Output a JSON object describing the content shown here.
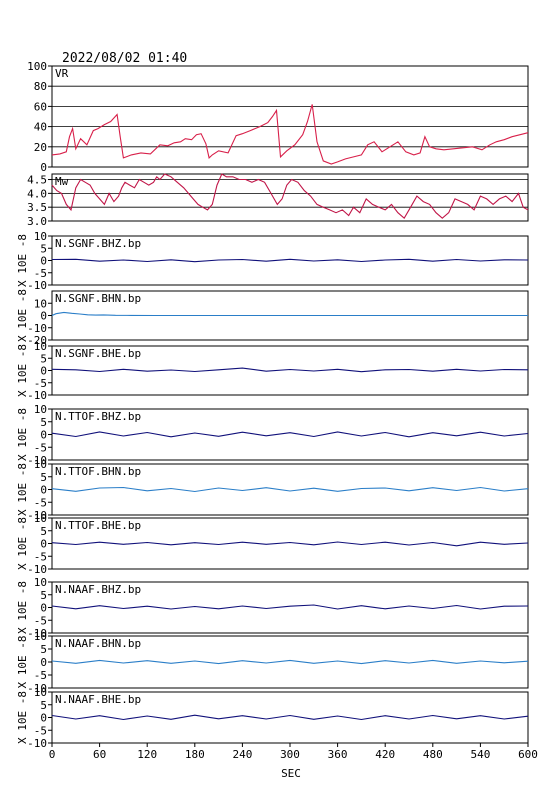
{
  "header": {
    "timestamp": "2022/08/02 01:40"
  },
  "colors": {
    "vr": "#d8204a",
    "mw": "#c01648",
    "dark": "#10107a",
    "light": "#2a7ec8",
    "frame": "#000000",
    "grid": "#000000"
  },
  "chart_data": [
    {
      "type": "line",
      "label": "VR",
      "ylim": [
        0,
        100
      ],
      "yticks": [
        "0",
        "20",
        "40",
        "60",
        "80",
        "100"
      ],
      "ytick_values": [
        0,
        20,
        40,
        60,
        80,
        100
      ],
      "grid": true,
      "series": [
        {
          "x": [
            0,
            10,
            18,
            22,
            26,
            30,
            36,
            44,
            52,
            58,
            66,
            74,
            82,
            86,
            90,
            100,
            112,
            124,
            136,
            146,
            154,
            162,
            168,
            176,
            182,
            188,
            194,
            198,
            202,
            210,
            222,
            232,
            240,
            250,
            262,
            272,
            278,
            283,
            288,
            296,
            306,
            316,
            322,
            328,
            334,
            342,
            352,
            360,
            370,
            380,
            390,
            398,
            406,
            416,
            426,
            436,
            446,
            456,
            464,
            470,
            476,
            484,
            494,
            506,
            518,
            530,
            542,
            552,
            560,
            570,
            580,
            590,
            600
          ],
          "values": [
            12,
            13,
            15,
            30,
            38,
            18,
            28,
            22,
            36,
            38,
            42,
            45,
            52,
            30,
            9,
            12,
            14,
            13,
            22,
            21,
            24,
            25,
            28,
            27,
            32,
            33,
            23,
            9,
            12,
            16,
            14,
            31,
            33,
            36,
            40,
            44,
            50,
            56,
            10,
            16,
            22,
            32,
            45,
            62,
            25,
            6,
            3,
            5,
            8,
            10,
            12,
            22,
            25,
            15,
            20,
            25,
            15,
            12,
            14,
            30,
            20,
            18,
            17,
            18,
            19,
            20,
            17,
            22,
            25,
            27,
            30,
            32,
            34
          ]
        }
      ]
    },
    {
      "type": "line",
      "label": "Mw",
      "ylim": [
        3.0,
        4.7
      ],
      "yticks": [
        "3.0",
        "3.5",
        "4.0",
        "4.5"
      ],
      "ytick_values": [
        3.0,
        3.5,
        4.0,
        4.5
      ],
      "grid": true,
      "series": [
        {
          "x": [
            0,
            6,
            12,
            18,
            24,
            30,
            36,
            42,
            48,
            54,
            60,
            66,
            72,
            78,
            84,
            88,
            92,
            98,
            104,
            110,
            116,
            122,
            128,
            132,
            136,
            142,
            150,
            158,
            166,
            172,
            178,
            184,
            190,
            196,
            202,
            208,
            214,
            220,
            228,
            236,
            244,
            252,
            260,
            268,
            276,
            284,
            290,
            296,
            302,
            310,
            318,
            326,
            334,
            342,
            350,
            358,
            366,
            374,
            380,
            388,
            396,
            404,
            412,
            420,
            428,
            436,
            444,
            452,
            460,
            468,
            476,
            484,
            492,
            500,
            508,
            516,
            524,
            532,
            540,
            548,
            556,
            564,
            572,
            580,
            588,
            594,
            600
          ],
          "values": [
            4.3,
            4.1,
            4.0,
            3.6,
            3.4,
            4.2,
            4.5,
            4.4,
            4.3,
            4.0,
            3.8,
            3.6,
            4.0,
            3.7,
            3.9,
            4.2,
            4.4,
            4.3,
            4.2,
            4.5,
            4.4,
            4.3,
            4.4,
            4.6,
            4.5,
            4.7,
            4.6,
            4.4,
            4.2,
            4.0,
            3.8,
            3.6,
            3.5,
            3.4,
            3.6,
            4.3,
            4.7,
            4.6,
            4.6,
            4.5,
            4.5,
            4.4,
            4.5,
            4.4,
            4.0,
            3.6,
            3.8,
            4.3,
            4.5,
            4.4,
            4.1,
            3.9,
            3.6,
            3.5,
            3.4,
            3.3,
            3.4,
            3.2,
            3.5,
            3.3,
            3.8,
            3.6,
            3.5,
            3.4,
            3.6,
            3.3,
            3.1,
            3.5,
            3.9,
            3.7,
            3.6,
            3.3,
            3.1,
            3.3,
            3.8,
            3.7,
            3.6,
            3.4,
            3.9,
            3.8,
            3.6,
            3.8,
            3.9,
            3.7,
            4.0,
            3.5,
            3.4
          ]
        }
      ]
    },
    {
      "type": "line",
      "label": "N.SGNF.BHZ.bp",
      "color": "dark",
      "ylim": [
        -10,
        10
      ],
      "yticks": [
        "10",
        "5",
        "0",
        "-5",
        "-10"
      ],
      "ytick_values": [
        10,
        5,
        0,
        -5,
        -10
      ],
      "grid": false,
      "series": [
        {
          "x": [
            0,
            30,
            60,
            90,
            120,
            150,
            180,
            210,
            240,
            270,
            300,
            330,
            360,
            390,
            420,
            450,
            480,
            510,
            540,
            570,
            600
          ],
          "values": [
            0.4,
            0.5,
            -0.3,
            0.2,
            -0.4,
            0.3,
            -0.5,
            0.2,
            0.4,
            -0.3,
            0.5,
            -0.2,
            0.3,
            -0.4,
            0.2,
            0.5,
            -0.3,
            0.4,
            -0.2,
            0.3,
            0.2
          ]
        }
      ]
    },
    {
      "type": "line",
      "label": "N.SGNF.BHN.bp",
      "color": "light",
      "ylim": [
        -20,
        20
      ],
      "yticks": [
        "10",
        "0",
        "-10",
        "-20"
      ],
      "ytick_values": [
        10,
        0,
        -10,
        -20
      ],
      "grid": false,
      "series": [
        {
          "x": [
            0,
            5,
            15,
            25,
            35,
            45,
            55,
            65,
            80,
            100,
            130,
            160,
            200,
            300,
            400,
            500,
            600
          ],
          "values": [
            0,
            1.5,
            2.5,
            1.8,
            1.2,
            0.6,
            0.3,
            0.5,
            0.2,
            0.1,
            0,
            0,
            0,
            0,
            0,
            0,
            0
          ]
        }
      ]
    },
    {
      "type": "line",
      "label": "N.SGNF.BHE.bp",
      "color": "dark",
      "ylim": [
        -10,
        10
      ],
      "yticks": [
        "10",
        "5",
        "0",
        "-5",
        "-10"
      ],
      "ytick_values": [
        10,
        5,
        0,
        -5,
        -10
      ],
      "grid": false,
      "series": [
        {
          "x": [
            0,
            30,
            60,
            90,
            120,
            150,
            180,
            210,
            240,
            270,
            300,
            330,
            360,
            390,
            420,
            450,
            480,
            510,
            540,
            570,
            600
          ],
          "values": [
            0.5,
            0.3,
            -0.4,
            0.5,
            -0.3,
            0.2,
            -0.4,
            0.3,
            1.0,
            -0.3,
            0.4,
            -0.2,
            0.5,
            -0.5,
            0.3,
            0.4,
            -0.3,
            0.5,
            -0.2,
            0.4,
            0.3
          ]
        }
      ]
    },
    {
      "type": "line",
      "label": "N.TTOF.BHZ.bp",
      "color": "dark",
      "ylim": [
        -10,
        10
      ],
      "yticks": [
        "10",
        "5",
        "0",
        "-5",
        "-10"
      ],
      "ytick_values": [
        10,
        5,
        0,
        -5,
        -10
      ],
      "grid": false,
      "series": [
        {
          "x": [
            0,
            30,
            60,
            90,
            120,
            150,
            180,
            210,
            240,
            270,
            300,
            330,
            360,
            390,
            420,
            450,
            480,
            510,
            540,
            570,
            600
          ],
          "values": [
            0.5,
            -0.8,
            1.0,
            -0.6,
            0.8,
            -0.9,
            0.6,
            -0.7,
            0.9,
            -0.5,
            0.7,
            -0.8,
            1.0,
            -0.6,
            0.8,
            -0.9,
            0.7,
            -0.5,
            0.9,
            -0.6,
            0.4
          ]
        }
      ]
    },
    {
      "type": "line",
      "label": "N.TTOF.BHN.bp",
      "color": "light",
      "ylim": [
        -10,
        10
      ],
      "yticks": [
        "10",
        "5",
        "0",
        "-5",
        "-10"
      ],
      "ytick_values": [
        10,
        5,
        0,
        -5,
        -10
      ],
      "grid": false,
      "series": [
        {
          "x": [
            0,
            30,
            60,
            90,
            120,
            150,
            180,
            210,
            240,
            270,
            300,
            330,
            360,
            390,
            420,
            450,
            480,
            510,
            540,
            570,
            600
          ],
          "values": [
            0.3,
            -0.7,
            0.6,
            0.8,
            -0.5,
            0.4,
            -0.8,
            0.6,
            -0.4,
            0.7,
            -0.6,
            0.5,
            -0.7,
            0.4,
            0.6,
            -0.5,
            0.7,
            -0.4,
            0.8,
            -0.6,
            0.3
          ]
        }
      ]
    },
    {
      "type": "line",
      "label": "N.TTOF.BHE.bp",
      "color": "dark",
      "ylim": [
        -10,
        10
      ],
      "yticks": [
        "10",
        "5",
        "0",
        "-5",
        "-10"
      ],
      "ytick_values": [
        10,
        5,
        0,
        -5,
        -10
      ],
      "grid": false,
      "series": [
        {
          "x": [
            0,
            30,
            60,
            90,
            120,
            150,
            180,
            210,
            240,
            270,
            300,
            330,
            360,
            390,
            420,
            450,
            480,
            510,
            540,
            570,
            600
          ],
          "values": [
            0.3,
            -0.4,
            0.5,
            -0.3,
            0.4,
            -0.5,
            0.3,
            -0.4,
            0.5,
            -0.3,
            0.4,
            -0.5,
            0.6,
            -0.4,
            0.5,
            -0.6,
            0.4,
            -0.9,
            0.5,
            -0.3,
            0.2
          ]
        }
      ]
    },
    {
      "type": "line",
      "label": "N.NAAF.BHZ.bp",
      "color": "dark",
      "ylim": [
        -10,
        10
      ],
      "yticks": [
        "10",
        "5",
        "0",
        "-5",
        "-10"
      ],
      "ytick_values": [
        10,
        5,
        0,
        -5,
        -10
      ],
      "grid": false,
      "series": [
        {
          "x": [
            0,
            30,
            60,
            90,
            120,
            150,
            180,
            210,
            240,
            270,
            300,
            330,
            360,
            390,
            420,
            450,
            480,
            510,
            540,
            570,
            600
          ],
          "values": [
            0.6,
            -0.5,
            0.7,
            -0.4,
            0.5,
            -0.6,
            0.4,
            -0.5,
            0.6,
            -0.4,
            0.5,
            1.0,
            -0.6,
            0.7,
            -0.5,
            0.6,
            -0.4,
            0.8,
            -0.6,
            0.5,
            0.6
          ]
        }
      ]
    },
    {
      "type": "line",
      "label": "N.NAAF.BHN.bp",
      "color": "light",
      "ylim": [
        -10,
        10
      ],
      "yticks": [
        "10",
        "5",
        "0",
        "-5",
        "-10"
      ],
      "ytick_values": [
        10,
        5,
        0,
        -5,
        -10
      ],
      "grid": false,
      "series": [
        {
          "x": [
            0,
            30,
            60,
            90,
            120,
            150,
            180,
            210,
            240,
            270,
            300,
            330,
            360,
            390,
            420,
            450,
            480,
            510,
            540,
            570,
            600
          ],
          "values": [
            0.4,
            -0.5,
            0.6,
            -0.4,
            0.5,
            -0.5,
            0.4,
            -0.6,
            0.5,
            -0.4,
            0.6,
            -0.5,
            0.4,
            -0.6,
            0.5,
            -0.4,
            0.6,
            -0.5,
            0.4,
            -0.3,
            0.3
          ]
        }
      ]
    },
    {
      "type": "line",
      "label": "N.NAAF.BHE.bp",
      "color": "dark",
      "ylim": [
        -10,
        10
      ],
      "yticks": [
        "10",
        "5",
        "0",
        "-5",
        "-10"
      ],
      "ytick_values": [
        10,
        5,
        0,
        -5,
        -10
      ],
      "grid": false,
      "series": [
        {
          "x": [
            0,
            30,
            60,
            90,
            120,
            150,
            180,
            210,
            240,
            270,
            300,
            330,
            360,
            390,
            420,
            450,
            480,
            510,
            540,
            570,
            600
          ],
          "values": [
            0.8,
            -0.6,
            0.7,
            -0.8,
            0.6,
            -0.7,
            0.9,
            -0.5,
            0.7,
            -0.6,
            0.8,
            -0.7,
            0.6,
            -0.8,
            0.7,
            -0.6,
            0.8,
            -0.5,
            0.7,
            -0.6,
            0.5
          ]
        }
      ]
    }
  ],
  "x_axis": {
    "xlim": [
      0,
      600
    ],
    "xlabel": "SEC",
    "ticks": [
      "0",
      "60",
      "120",
      "180",
      "240",
      "300",
      "360",
      "420",
      "480",
      "540",
      "600"
    ],
    "tick_values": [
      0,
      60,
      120,
      180,
      240,
      300,
      360,
      420,
      480,
      540,
      600
    ]
  },
  "y_axis_label": "X 10E -8"
}
